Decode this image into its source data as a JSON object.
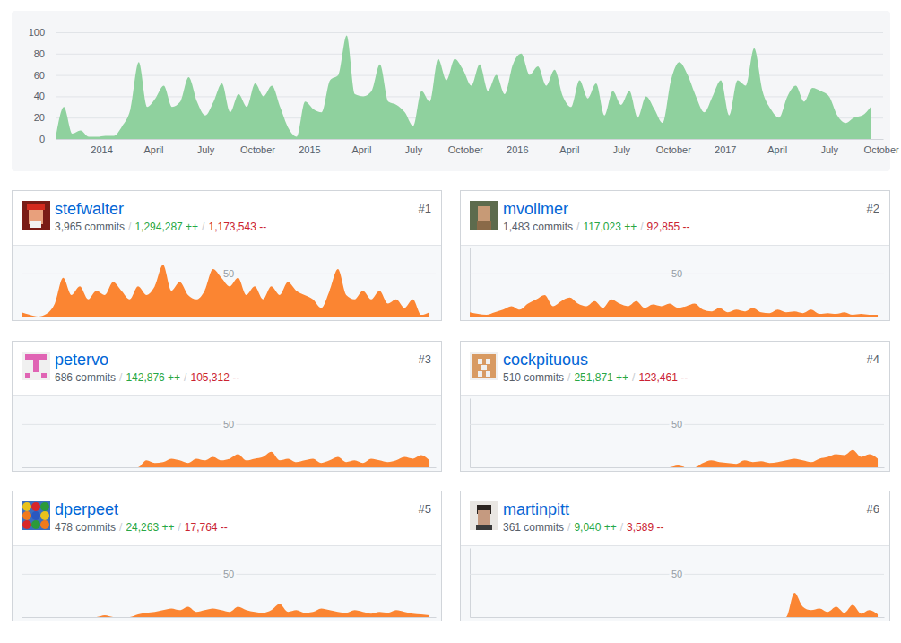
{
  "chart_data": [
    {
      "type": "area",
      "x": [
        2013.78,
        2013.82,
        2013.86,
        2013.9,
        2013.94,
        2013.98,
        2014.02,
        2014.06,
        2014.1,
        2014.14,
        2014.18,
        2014.22,
        2014.26,
        2014.3,
        2014.34,
        2014.38,
        2014.42,
        2014.46,
        2014.5,
        2014.54,
        2014.58,
        2014.62,
        2014.66,
        2014.7,
        2014.74,
        2014.78,
        2014.82,
        2014.86,
        2014.9,
        2014.94,
        2014.98,
        2015.02,
        2015.06,
        2015.1,
        2015.14,
        2015.18,
        2015.22,
        2015.26,
        2015.3,
        2015.34,
        2015.38,
        2015.42,
        2015.46,
        2015.5,
        2015.54,
        2015.58,
        2015.62,
        2015.66,
        2015.7,
        2015.74,
        2015.78,
        2015.82,
        2015.86,
        2015.9,
        2015.94,
        2015.98,
        2016.02,
        2016.06,
        2016.1,
        2016.14,
        2016.18,
        2016.22,
        2016.26,
        2016.3,
        2016.34,
        2016.38,
        2016.42,
        2016.46,
        2016.5,
        2016.54,
        2016.58,
        2016.62,
        2016.66,
        2016.7,
        2016.74,
        2016.78,
        2016.82,
        2016.86,
        2016.9,
        2016.94,
        2016.98,
        2017.02,
        2017.06,
        2017.1,
        2017.14,
        2017.18,
        2017.22,
        2017.26,
        2017.3,
        2017.34,
        2017.38,
        2017.42,
        2017.46,
        2017.5,
        2017.54,
        2017.58,
        2017.62,
        2017.66,
        2017.7
      ],
      "values": [
        0,
        30,
        5,
        8,
        2,
        2,
        3,
        3,
        12,
        28,
        72,
        30,
        38,
        50,
        30,
        35,
        58,
        35,
        22,
        35,
        52,
        25,
        42,
        30,
        52,
        40,
        50,
        30,
        10,
        2,
        35,
        28,
        25,
        55,
        60,
        97,
        42,
        40,
        45,
        70,
        35,
        32,
        25,
        12,
        45,
        35,
        75,
        55,
        75,
        65,
        50,
        70,
        45,
        60,
        42,
        70,
        80,
        60,
        68,
        50,
        65,
        40,
        30,
        55,
        38,
        52,
        22,
        45,
        32,
        45,
        20,
        40,
        28,
        15,
        55,
        72,
        60,
        40,
        25,
        40,
        55,
        22,
        55,
        50,
        85,
        45,
        28,
        20,
        40,
        50,
        35,
        48,
        45,
        40,
        22,
        15,
        20,
        22,
        30
      ],
      "color": "#8fd19e",
      "xlim": [
        2013.78,
        2017.76
      ],
      "ylim": [
        0,
        100
      ],
      "xticks": [
        2014,
        {
          "value": 2014.25,
          "label": "April"
        },
        {
          "value": 2014.5,
          "label": "July"
        },
        {
          "value": 2014.75,
          "label": "October"
        },
        2015,
        {
          "value": 2015.25,
          "label": "April"
        },
        {
          "value": 2015.5,
          "label": "July"
        },
        {
          "value": 2015.75,
          "label": "October"
        },
        2016,
        {
          "value": 2016.25,
          "label": "April"
        },
        {
          "value": 2016.5,
          "label": "July"
        },
        {
          "value": 2016.75,
          "label": "October"
        },
        2017,
        {
          "value": 2017.25,
          "label": "April"
        },
        {
          "value": 2017.5,
          "label": "July"
        },
        {
          "value": 2017.75,
          "label": "October"
        }
      ],
      "yticks": [
        0,
        20,
        40,
        60,
        80,
        100
      ],
      "grid": true
    },
    {
      "type": "area",
      "title": "stefwalter",
      "subtitle": [
        "3,965 commits",
        "/",
        "1,294,287 ++",
        "/",
        "1,173,543 --"
      ],
      "annotations": [
        "#1"
      ],
      "x": [
        2013.78,
        2013.86,
        2013.94,
        2014.02,
        2014.1,
        2014.18,
        2014.26,
        2014.34,
        2014.42,
        2014.5,
        2014.58,
        2014.66,
        2014.74,
        2014.82,
        2014.9,
        2014.98,
        2015.06,
        2015.14,
        2015.22,
        2015.3,
        2015.38,
        2015.46,
        2015.54,
        2015.62,
        2015.7,
        2015.78,
        2015.86,
        2015.94,
        2016.02,
        2016.1,
        2016.18,
        2016.26,
        2016.34,
        2016.42,
        2016.5,
        2016.58,
        2016.66,
        2016.74,
        2016.82,
        2016.9,
        2016.98,
        2017.06,
        2017.14,
        2017.22,
        2017.3,
        2017.38,
        2017.46,
        2017.54,
        2017.62,
        2017.7
      ],
      "values": [
        5,
        2,
        0,
        3,
        15,
        45,
        25,
        35,
        20,
        30,
        25,
        40,
        30,
        20,
        35,
        25,
        35,
        60,
        30,
        40,
        25,
        20,
        30,
        55,
        45,
        35,
        45,
        25,
        35,
        20,
        35,
        25,
        40,
        30,
        25,
        20,
        10,
        30,
        55,
        25,
        20,
        30,
        20,
        30,
        15,
        20,
        10,
        20,
        2,
        5
      ],
      "color": "#fb8532",
      "xlim": [
        2013.78,
        2017.76
      ],
      "ylim": [
        0,
        80
      ],
      "yticks": [
        50
      ],
      "grid": true,
      "tick_labels": "y"
    },
    {
      "type": "area",
      "title": "mvollmer",
      "subtitle": [
        "1,483 commits",
        "/",
        "117,023 ++",
        "/",
        "92,855 --"
      ],
      "annotations": [
        "#2"
      ],
      "x": [
        2013.78,
        2013.86,
        2013.94,
        2014.02,
        2014.1,
        2014.18,
        2014.26,
        2014.34,
        2014.42,
        2014.5,
        2014.58,
        2014.66,
        2014.74,
        2014.82,
        2014.9,
        2014.98,
        2015.06,
        2015.14,
        2015.22,
        2015.3,
        2015.38,
        2015.46,
        2015.54,
        2015.62,
        2015.7,
        2015.78,
        2015.86,
        2015.94,
        2016.02,
        2016.1,
        2016.18,
        2016.26,
        2016.34,
        2016.42,
        2016.5,
        2016.58,
        2016.66,
        2016.74,
        2016.82,
        2016.9,
        2016.98,
        2017.06,
        2017.14,
        2017.22,
        2017.3,
        2017.38,
        2017.46,
        2017.54,
        2017.62,
        2017.7
      ],
      "values": [
        5,
        3,
        2,
        5,
        8,
        12,
        8,
        15,
        20,
        25,
        12,
        18,
        22,
        15,
        12,
        18,
        10,
        20,
        15,
        12,
        18,
        10,
        14,
        12,
        15,
        10,
        12,
        15,
        8,
        6,
        10,
        5,
        8,
        6,
        10,
        5,
        4,
        8,
        5,
        6,
        4,
        8,
        3,
        4,
        3,
        5,
        2,
        3,
        2,
        2
      ],
      "color": "#fb8532",
      "xlim": [
        2013.78,
        2017.76
      ],
      "ylim": [
        0,
        80
      ],
      "yticks": [
        50
      ],
      "grid": true,
      "tick_labels": "y"
    },
    {
      "type": "area",
      "title": "petervo",
      "subtitle": [
        "686 commits",
        "/",
        "142,876 ++",
        "/",
        "105,312 --"
      ],
      "annotations": [
        "#3"
      ],
      "x": [
        2013.78,
        2013.86,
        2013.94,
        2014.02,
        2014.1,
        2014.18,
        2014.26,
        2014.34,
        2014.42,
        2014.5,
        2014.58,
        2014.66,
        2014.74,
        2014.82,
        2014.9,
        2014.98,
        2015.06,
        2015.14,
        2015.22,
        2015.3,
        2015.38,
        2015.46,
        2015.54,
        2015.62,
        2015.7,
        2015.78,
        2015.86,
        2015.94,
        2016.02,
        2016.1,
        2016.18,
        2016.26,
        2016.34,
        2016.42,
        2016.5,
        2016.58,
        2016.66,
        2016.74,
        2016.82,
        2016.9,
        2016.98,
        2017.06,
        2017.14,
        2017.22,
        2017.3,
        2017.38,
        2017.46,
        2017.54,
        2017.62,
        2017.7
      ],
      "values": [
        0,
        0,
        0,
        0,
        0,
        0,
        0,
        0,
        0,
        0,
        0,
        0,
        0,
        0,
        0,
        8,
        5,
        6,
        10,
        8,
        5,
        10,
        8,
        12,
        8,
        10,
        15,
        8,
        10,
        12,
        18,
        8,
        10,
        6,
        8,
        10,
        5,
        8,
        12,
        6,
        8,
        5,
        10,
        8,
        6,
        8,
        12,
        10,
        14,
        8
      ],
      "color": "#fb8532",
      "xlim": [
        2013.78,
        2017.76
      ],
      "ylim": [
        0,
        80
      ],
      "yticks": [
        50
      ],
      "grid": true,
      "tick_labels": "y"
    },
    {
      "type": "area",
      "title": "cockpituous",
      "subtitle": [
        "510 commits",
        "/",
        "251,871 ++",
        "/",
        "123,461 --"
      ],
      "annotations": [
        "#4"
      ],
      "x": [
        2013.78,
        2013.86,
        2013.94,
        2014.02,
        2014.1,
        2014.18,
        2014.26,
        2014.34,
        2014.42,
        2014.5,
        2014.58,
        2014.66,
        2014.74,
        2014.82,
        2014.9,
        2014.98,
        2015.06,
        2015.14,
        2015.22,
        2015.3,
        2015.38,
        2015.46,
        2015.54,
        2015.62,
        2015.7,
        2015.78,
        2015.86,
        2015.94,
        2016.02,
        2016.1,
        2016.18,
        2016.26,
        2016.34,
        2016.42,
        2016.5,
        2016.58,
        2016.66,
        2016.74,
        2016.82,
        2016.9,
        2016.98,
        2017.06,
        2017.14,
        2017.22,
        2017.3,
        2017.38,
        2017.46,
        2017.54,
        2017.62,
        2017.7
      ],
      "values": [
        0,
        0,
        0,
        0,
        0,
        0,
        0,
        0,
        0,
        0,
        0,
        0,
        0,
        0,
        0,
        0,
        0,
        0,
        0,
        0,
        0,
        0,
        0,
        0,
        0,
        2,
        0,
        0,
        5,
        8,
        6,
        5,
        4,
        8,
        6,
        7,
        5,
        6,
        8,
        10,
        8,
        6,
        10,
        12,
        15,
        14,
        20,
        12,
        15,
        10
      ],
      "color": "#fb8532",
      "xlim": [
        2013.78,
        2017.76
      ],
      "ylim": [
        0,
        80
      ],
      "yticks": [
        50
      ],
      "grid": true,
      "tick_labels": "y"
    },
    {
      "type": "area",
      "title": "dperpeet",
      "subtitle": [
        "478 commits",
        "/",
        "24,263 ++",
        "/",
        "17,764 --"
      ],
      "annotations": [
        "#5"
      ],
      "x": [
        2013.78,
        2013.86,
        2013.94,
        2014.02,
        2014.1,
        2014.18,
        2014.26,
        2014.34,
        2014.42,
        2014.5,
        2014.58,
        2014.66,
        2014.74,
        2014.82,
        2014.9,
        2014.98,
        2015.06,
        2015.14,
        2015.22,
        2015.3,
        2015.38,
        2015.46,
        2015.54,
        2015.62,
        2015.7,
        2015.78,
        2015.86,
        2015.94,
        2016.02,
        2016.1,
        2016.18,
        2016.26,
        2016.34,
        2016.42,
        2016.5,
        2016.58,
        2016.66,
        2016.74,
        2016.82,
        2016.9,
        2016.98,
        2017.06,
        2017.14,
        2017.22,
        2017.3,
        2017.38,
        2017.46,
        2017.54,
        2017.62,
        2017.7
      ],
      "values": [
        0,
        0,
        0,
        0,
        0,
        0,
        0,
        0,
        0,
        0,
        2,
        0,
        0,
        0,
        3,
        5,
        6,
        8,
        10,
        8,
        12,
        6,
        8,
        10,
        8,
        6,
        12,
        8,
        6,
        5,
        8,
        15,
        6,
        8,
        5,
        6,
        10,
        8,
        6,
        5,
        8,
        6,
        4,
        6,
        5,
        8,
        6,
        4,
        3,
        2
      ],
      "color": "#fb8532",
      "xlim": [
        2013.78,
        2017.76
      ],
      "ylim": [
        0,
        80
      ],
      "yticks": [
        50
      ],
      "grid": true,
      "tick_labels": "y"
    },
    {
      "type": "area",
      "title": "martinpitt",
      "subtitle": [
        "361 commits",
        "/",
        "9,040 ++",
        "/",
        "3,589 --"
      ],
      "annotations": [
        "#6"
      ],
      "x": [
        2013.78,
        2013.86,
        2013.94,
        2014.02,
        2014.1,
        2014.18,
        2014.26,
        2014.34,
        2014.42,
        2014.5,
        2014.58,
        2014.66,
        2014.74,
        2014.82,
        2014.9,
        2014.98,
        2015.06,
        2015.14,
        2015.22,
        2015.3,
        2015.38,
        2015.46,
        2015.54,
        2015.62,
        2015.7,
        2015.78,
        2015.86,
        2015.94,
        2016.02,
        2016.1,
        2016.18,
        2016.26,
        2016.34,
        2016.42,
        2016.5,
        2016.58,
        2016.66,
        2016.74,
        2016.82,
        2016.9,
        2016.98,
        2017.06,
        2017.14,
        2017.22,
        2017.3,
        2017.38,
        2017.46,
        2017.54,
        2017.62,
        2017.7
      ],
      "values": [
        0,
        0,
        0,
        0,
        0,
        0,
        0,
        0,
        0,
        0,
        0,
        0,
        0,
        0,
        0,
        0,
        0,
        0,
        0,
        0,
        0,
        0,
        0,
        0,
        0,
        0,
        0,
        0,
        0,
        0,
        0,
        0,
        0,
        0,
        0,
        0,
        0,
        0,
        0,
        28,
        12,
        8,
        10,
        6,
        12,
        5,
        14,
        4,
        8,
        3
      ],
      "color": "#fb8532",
      "xlim": [
        2013.78,
        2017.76
      ],
      "ylim": [
        0,
        80
      ],
      "yticks": [
        50
      ],
      "grid": true,
      "tick_labels": "y"
    }
  ]
}
